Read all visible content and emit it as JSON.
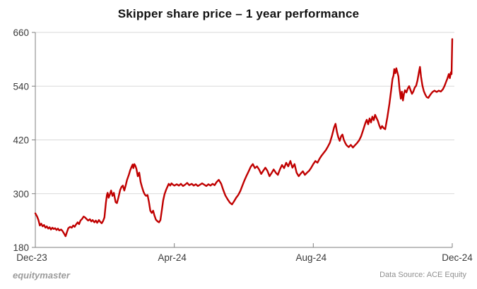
{
  "title": "Skipper share price – 1 year performance",
  "footer": {
    "brand": "equitymaster",
    "source": "Data Source: ACE Equity"
  },
  "colors": {
    "line": "#c00000",
    "grid": "#d9d9d9",
    "axis": "#7f7f7f",
    "tick_label": "#3a3a3a",
    "background": "#ffffff"
  },
  "chart_data": {
    "type": "line",
    "title": "Skipper share price – 1 year performance",
    "series_name": "Skipper share price (Rs)",
    "xlabel": "",
    "ylabel": "",
    "xlim": [
      0,
      12
    ],
    "ylim": [
      180,
      660
    ],
    "grid": "horizontal",
    "legend": "none",
    "x_unit": "months after Dec-2023",
    "x_ticks": [
      {
        "pos": 0,
        "label": "Dec-23"
      },
      {
        "pos": 4,
        "label": "Apr-24"
      },
      {
        "pos": 8,
        "label": "Aug-24"
      },
      {
        "pos": 12,
        "label": "Dec-24"
      }
    ],
    "y_ticks": [
      180,
      300,
      420,
      540,
      660
    ],
    "points": [
      [
        0.0,
        256
      ],
      [
        0.05,
        249
      ],
      [
        0.09,
        241
      ],
      [
        0.13,
        229
      ],
      [
        0.17,
        233
      ],
      [
        0.21,
        227
      ],
      [
        0.25,
        230
      ],
      [
        0.29,
        224
      ],
      [
        0.33,
        227
      ],
      [
        0.37,
        222
      ],
      [
        0.41,
        225
      ],
      [
        0.45,
        220
      ],
      [
        0.49,
        224
      ],
      [
        0.53,
        221
      ],
      [
        0.57,
        223
      ],
      [
        0.61,
        219
      ],
      [
        0.65,
        222
      ],
      [
        0.69,
        218
      ],
      [
        0.74,
        220
      ],
      [
        0.78,
        217
      ],
      [
        0.82,
        212
      ],
      [
        0.87,
        205
      ],
      [
        0.91,
        214
      ],
      [
        0.95,
        223
      ],
      [
        1.0,
        226
      ],
      [
        1.05,
        224
      ],
      [
        1.09,
        229
      ],
      [
        1.13,
        226
      ],
      [
        1.17,
        231
      ],
      [
        1.22,
        236
      ],
      [
        1.26,
        232
      ],
      [
        1.3,
        240
      ],
      [
        1.35,
        244
      ],
      [
        1.39,
        249
      ],
      [
        1.43,
        247
      ],
      [
        1.48,
        243
      ],
      [
        1.52,
        240
      ],
      [
        1.57,
        243
      ],
      [
        1.61,
        238
      ],
      [
        1.65,
        241
      ],
      [
        1.7,
        236
      ],
      [
        1.74,
        240
      ],
      [
        1.78,
        235
      ],
      [
        1.83,
        241
      ],
      [
        1.87,
        237
      ],
      [
        1.91,
        234
      ],
      [
        1.95,
        239
      ],
      [
        1.99,
        247
      ],
      [
        2.03,
        279
      ],
      [
        2.06,
        297
      ],
      [
        2.08,
        302
      ],
      [
        2.11,
        291
      ],
      [
        2.14,
        297
      ],
      [
        2.18,
        307
      ],
      [
        2.22,
        295
      ],
      [
        2.26,
        302
      ],
      [
        2.31,
        281
      ],
      [
        2.35,
        279
      ],
      [
        2.39,
        291
      ],
      [
        2.44,
        308
      ],
      [
        2.48,
        315
      ],
      [
        2.52,
        318
      ],
      [
        2.56,
        307
      ],
      [
        2.6,
        318
      ],
      [
        2.64,
        331
      ],
      [
        2.69,
        342
      ],
      [
        2.73,
        352
      ],
      [
        2.77,
        360
      ],
      [
        2.8,
        365
      ],
      [
        2.82,
        357
      ],
      [
        2.85,
        366
      ],
      [
        2.88,
        362
      ],
      [
        2.91,
        355
      ],
      [
        2.95,
        339
      ],
      [
        2.99,
        347
      ],
      [
        3.03,
        326
      ],
      [
        3.07,
        315
      ],
      [
        3.11,
        305
      ],
      [
        3.15,
        298
      ],
      [
        3.19,
        295
      ],
      [
        3.23,
        297
      ],
      [
        3.27,
        281
      ],
      [
        3.31,
        262
      ],
      [
        3.35,
        257
      ],
      [
        3.39,
        262
      ],
      [
        3.43,
        251
      ],
      [
        3.47,
        242
      ],
      [
        3.52,
        238
      ],
      [
        3.56,
        236
      ],
      [
        3.6,
        241
      ],
      [
        3.64,
        263
      ],
      [
        3.68,
        285
      ],
      [
        3.72,
        299
      ],
      [
        3.76,
        308
      ],
      [
        3.8,
        315
      ],
      [
        3.84,
        322
      ],
      [
        3.88,
        318
      ],
      [
        3.92,
        323
      ],
      [
        3.96,
        320
      ],
      [
        4.0,
        318
      ],
      [
        4.07,
        321
      ],
      [
        4.13,
        318
      ],
      [
        4.19,
        322
      ],
      [
        4.25,
        317
      ],
      [
        4.31,
        320
      ],
      [
        4.37,
        324
      ],
      [
        4.43,
        319
      ],
      [
        4.5,
        322
      ],
      [
        4.56,
        318
      ],
      [
        4.62,
        321
      ],
      [
        4.68,
        317
      ],
      [
        4.74,
        320
      ],
      [
        4.8,
        323
      ],
      [
        4.86,
        320
      ],
      [
        4.92,
        317
      ],
      [
        4.98,
        321
      ],
      [
        5.04,
        318
      ],
      [
        5.1,
        322
      ],
      [
        5.16,
        319
      ],
      [
        5.22,
        326
      ],
      [
        5.28,
        331
      ],
      [
        5.35,
        322
      ],
      [
        5.41,
        308
      ],
      [
        5.47,
        296
      ],
      [
        5.53,
        288
      ],
      [
        5.6,
        280
      ],
      [
        5.66,
        276
      ],
      [
        5.72,
        283
      ],
      [
        5.78,
        291
      ],
      [
        5.84,
        297
      ],
      [
        5.9,
        306
      ],
      [
        5.96,
        318
      ],
      [
        6.02,
        330
      ],
      [
        6.08,
        340
      ],
      [
        6.14,
        350
      ],
      [
        6.2,
        360
      ],
      [
        6.26,
        366
      ],
      [
        6.32,
        357
      ],
      [
        6.38,
        361
      ],
      [
        6.44,
        354
      ],
      [
        6.5,
        344
      ],
      [
        6.56,
        351
      ],
      [
        6.62,
        358
      ],
      [
        6.68,
        351
      ],
      [
        6.74,
        339
      ],
      [
        6.8,
        346
      ],
      [
        6.86,
        354
      ],
      [
        6.92,
        347
      ],
      [
        6.98,
        342
      ],
      [
        7.04,
        354
      ],
      [
        7.1,
        364
      ],
      [
        7.16,
        357
      ],
      [
        7.22,
        369
      ],
      [
        7.28,
        361
      ],
      [
        7.34,
        373
      ],
      [
        7.4,
        358
      ],
      [
        7.46,
        366
      ],
      [
        7.52,
        347
      ],
      [
        7.58,
        339
      ],
      [
        7.64,
        345
      ],
      [
        7.7,
        350
      ],
      [
        7.76,
        342
      ],
      [
        7.82,
        347
      ],
      [
        7.88,
        351
      ],
      [
        7.94,
        358
      ],
      [
        8.0,
        366
      ],
      [
        8.06,
        373
      ],
      [
        8.12,
        369
      ],
      [
        8.18,
        378
      ],
      [
        8.24,
        385
      ],
      [
        8.3,
        391
      ],
      [
        8.36,
        397
      ],
      [
        8.42,
        405
      ],
      [
        8.48,
        414
      ],
      [
        8.54,
        430
      ],
      [
        8.6,
        448
      ],
      [
        8.64,
        456
      ],
      [
        8.68,
        438
      ],
      [
        8.72,
        426
      ],
      [
        8.76,
        418
      ],
      [
        8.8,
        428
      ],
      [
        8.84,
        432
      ],
      [
        8.88,
        420
      ],
      [
        8.92,
        413
      ],
      [
        8.96,
        408
      ],
      [
        9.02,
        404
      ],
      [
        9.08,
        409
      ],
      [
        9.14,
        403
      ],
      [
        9.2,
        408
      ],
      [
        9.26,
        413
      ],
      [
        9.32,
        419
      ],
      [
        9.38,
        429
      ],
      [
        9.44,
        443
      ],
      [
        9.5,
        458
      ],
      [
        9.54,
        465
      ],
      [
        9.58,
        455
      ],
      [
        9.62,
        468
      ],
      [
        9.66,
        459
      ],
      [
        9.7,
        472
      ],
      [
        9.74,
        464
      ],
      [
        9.78,
        476
      ],
      [
        9.82,
        469
      ],
      [
        9.86,
        462
      ],
      [
        9.9,
        452
      ],
      [
        9.94,
        445
      ],
      [
        9.98,
        451
      ],
      [
        10.03,
        446
      ],
      [
        10.07,
        444
      ],
      [
        10.13,
        470
      ],
      [
        10.19,
        500
      ],
      [
        10.24,
        531
      ],
      [
        10.28,
        556
      ],
      [
        10.31,
        564
      ],
      [
        10.33,
        578
      ],
      [
        10.36,
        569
      ],
      [
        10.39,
        580
      ],
      [
        10.42,
        571
      ],
      [
        10.45,
        562
      ],
      [
        10.48,
        535
      ],
      [
        10.52,
        512
      ],
      [
        10.55,
        528
      ],
      [
        10.58,
        508
      ],
      [
        10.61,
        523
      ],
      [
        10.64,
        531
      ],
      [
        10.68,
        526
      ],
      [
        10.72,
        535
      ],
      [
        10.76,
        540
      ],
      [
        10.8,
        531
      ],
      [
        10.84,
        523
      ],
      [
        10.88,
        528
      ],
      [
        10.92,
        537
      ],
      [
        10.96,
        541
      ],
      [
        11.0,
        553
      ],
      [
        11.04,
        571
      ],
      [
        11.07,
        583
      ],
      [
        11.1,
        561
      ],
      [
        11.14,
        542
      ],
      [
        11.18,
        529
      ],
      [
        11.22,
        522
      ],
      [
        11.26,
        516
      ],
      [
        11.31,
        514
      ],
      [
        11.37,
        521
      ],
      [
        11.43,
        527
      ],
      [
        11.49,
        530
      ],
      [
        11.55,
        527
      ],
      [
        11.61,
        530
      ],
      [
        11.67,
        528
      ],
      [
        11.73,
        533
      ],
      [
        11.78,
        541
      ],
      [
        11.82,
        549
      ],
      [
        11.86,
        557
      ],
      [
        11.9,
        567
      ],
      [
        11.93,
        558
      ],
      [
        11.96,
        571
      ],
      [
        11.98,
        567
      ],
      [
        12.0,
        645
      ]
    ]
  }
}
